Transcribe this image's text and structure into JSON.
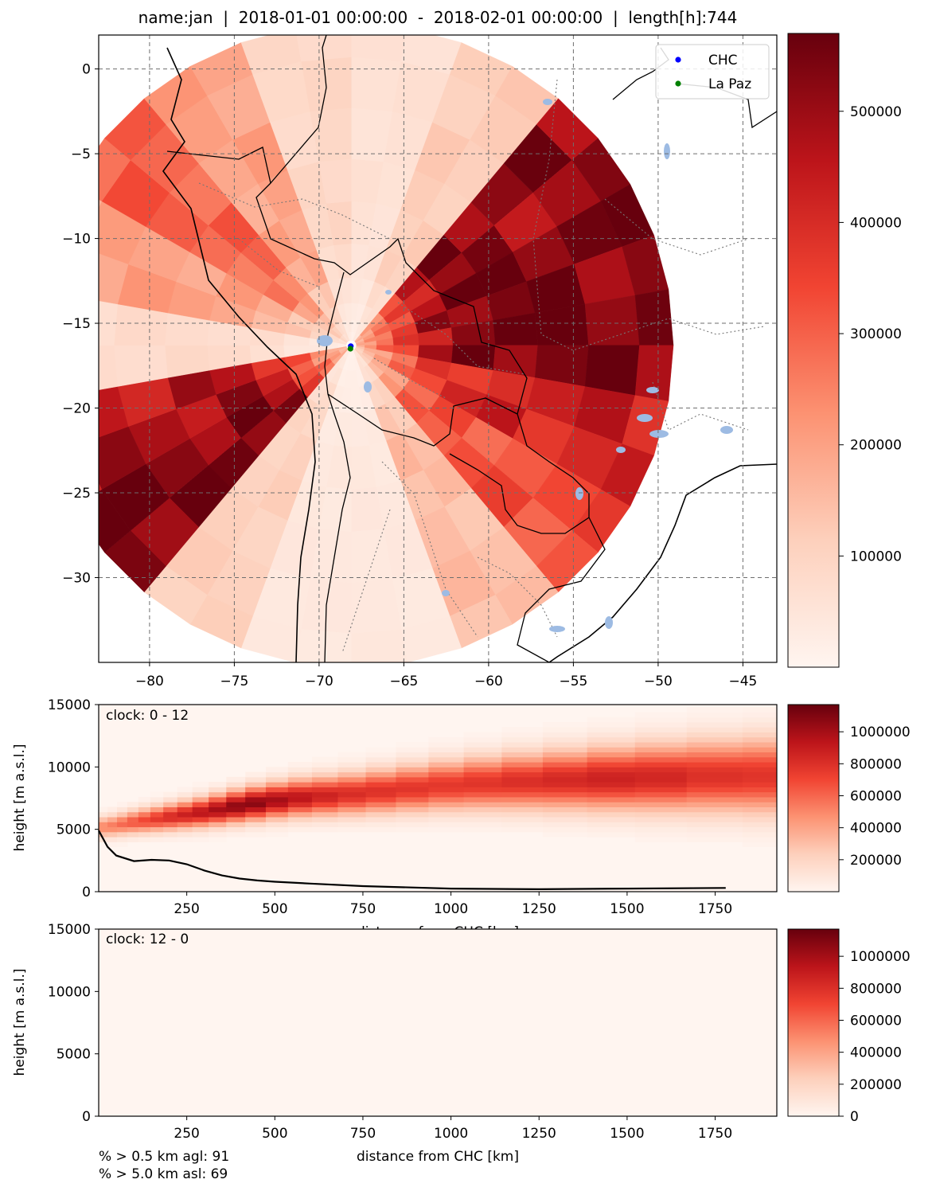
{
  "figure_title": "name:jan  |  2018-01-01 00:00:00  -  2018-02-01 00:00:00  |  length[h]:744",
  "stats": {
    "line1": "% > 0.5 km agl: 91",
    "line2": "% > 5.0 km asl: 69"
  },
  "colors": {
    "cmap_low": "#fff5f0",
    "cmap_mid": "#fb6a4a",
    "cmap_high": "#67000d",
    "chc_marker": "#0000ff",
    "lapaz_marker": "#008000",
    "lakes": "#9dbbe3",
    "borders": "#000000",
    "internal_borders": "#707070",
    "grid": "#6e6e6e"
  },
  "chart_data": [
    {
      "type": "heatmap",
      "subtype": "polar-map",
      "title": "name:jan  |  2018-01-01 00:00:00  -  2018-02-01 00:00:00  |  length[h]:744",
      "xlim": [
        -83,
        -43
      ],
      "ylim": [
        -35,
        2
      ],
      "x_ticks": [
        -80,
        -75,
        -70,
        -65,
        -60,
        -55,
        -50,
        -45
      ],
      "y_ticks": [
        0,
        -5,
        -10,
        -15,
        -20,
        -25,
        -30
      ],
      "x_tick_labels": [
        "−80",
        "−75",
        "−70",
        "−65",
        "−60",
        "−55",
        "−50",
        "−45"
      ],
      "y_tick_labels": [
        "0",
        "−5",
        "−10",
        "−15",
        "−20",
        "−25",
        "−30"
      ],
      "grid": true,
      "center": {
        "lon": -68.1,
        "lat": -16.3
      },
      "max_radius_deg": 19,
      "colorbar": {
        "min": 0,
        "max": 570000,
        "ticks": [
          100000,
          200000,
          300000,
          400000,
          500000
        ]
      },
      "legend": {
        "position": "top-right",
        "entries": [
          {
            "label": "CHC",
            "color": "#0000ff"
          },
          {
            "label": "La Paz",
            "color": "#008000"
          }
        ]
      },
      "points": [
        {
          "label": "CHC",
          "lon": -68.13,
          "lat": -16.35
        },
        {
          "label": "La Paz",
          "lon": -68.15,
          "lat": -16.5
        }
      ],
      "sector_intensity": [
        {
          "bearing_from": 0,
          "bearing_to": 20,
          "value": 60000
        },
        {
          "bearing_from": 20,
          "bearing_to": 40,
          "value": 120000
        },
        {
          "bearing_from": 40,
          "bearing_to": 60,
          "value": 520000
        },
        {
          "bearing_from": 60,
          "bearing_to": 80,
          "value": 560000
        },
        {
          "bearing_from": 80,
          "bearing_to": 100,
          "value": 560000
        },
        {
          "bearing_from": 100,
          "bearing_to": 120,
          "value": 420000
        },
        {
          "bearing_from": 120,
          "bearing_to": 140,
          "value": 330000
        },
        {
          "bearing_from": 140,
          "bearing_to": 160,
          "value": 150000
        },
        {
          "bearing_from": 160,
          "bearing_to": 180,
          "value": 40000
        },
        {
          "bearing_from": 180,
          "bearing_to": 200,
          "value": 40000
        },
        {
          "bearing_from": 200,
          "bearing_to": 220,
          "value": 110000
        },
        {
          "bearing_from": 220,
          "bearing_to": 240,
          "value": 560000
        },
        {
          "bearing_from": 240,
          "bearing_to": 260,
          "value": 480000
        },
        {
          "bearing_from": 260,
          "bearing_to": 280,
          "value": 80000
        },
        {
          "bearing_from": 280,
          "bearing_to": 300,
          "value": 200000
        },
        {
          "bearing_from": 300,
          "bearing_to": 320,
          "value": 300000
        },
        {
          "bearing_from": 320,
          "bearing_to": 340,
          "value": 200000
        },
        {
          "bearing_from": 340,
          "bearing_to": 360,
          "value": 90000
        }
      ]
    },
    {
      "type": "heatmap",
      "annotation": "clock: 0 - 12",
      "xlabel": "distance from CHC [km]",
      "ylabel": "height [m a.s.l.]",
      "xlim": [
        0,
        1925
      ],
      "ylim": [
        0,
        15000
      ],
      "x_ticks": [
        250,
        500,
        750,
        1000,
        1250,
        1500,
        1750
      ],
      "y_ticks": [
        0,
        5000,
        10000,
        15000
      ],
      "colorbar": {
        "min": 0,
        "max": 1170000,
        "ticks": [
          200000,
          400000,
          600000,
          800000,
          1000000
        ]
      },
      "layer_peak": {
        "height_m": [
          5200,
          5600,
          6000,
          6400,
          7000,
          7500,
          7800,
          8200,
          8600,
          8900,
          9100,
          9300
        ],
        "distance_km": [
          20,
          100,
          200,
          300,
          420,
          550,
          700,
          860,
          1020,
          1250,
          1500,
          1800
        ],
        "value": [
          500000,
          650000,
          820000,
          950000,
          1100000,
          950000,
          820000,
          780000,
          760000,
          820000,
          880000,
          780000
        ]
      },
      "terrain_line": {
        "x": [
          0,
          25,
          50,
          100,
          150,
          200,
          250,
          300,
          350,
          400,
          450,
          500,
          600,
          750,
          1000,
          1250,
          1500,
          1780
        ],
        "y": [
          4900,
          3600,
          2900,
          2450,
          2550,
          2500,
          2200,
          1700,
          1300,
          1050,
          900,
          800,
          650,
          450,
          250,
          200,
          250,
          300
        ]
      }
    },
    {
      "type": "heatmap",
      "annotation": "clock: 12 - 0",
      "xlabel": "distance from CHC [km]",
      "ylabel": "height [m a.s.l.]",
      "xlim": [
        0,
        1925
      ],
      "ylim": [
        0,
        15000
      ],
      "x_ticks": [
        250,
        500,
        750,
        1000,
        1250,
        1500,
        1750
      ],
      "y_ticks": [
        0,
        5000,
        10000,
        15000
      ],
      "colorbar": {
        "min": 0,
        "max": 1170000,
        "ticks": [
          0,
          200000,
          400000,
          600000,
          800000,
          1000000
        ]
      },
      "values_all": 0
    }
  ]
}
